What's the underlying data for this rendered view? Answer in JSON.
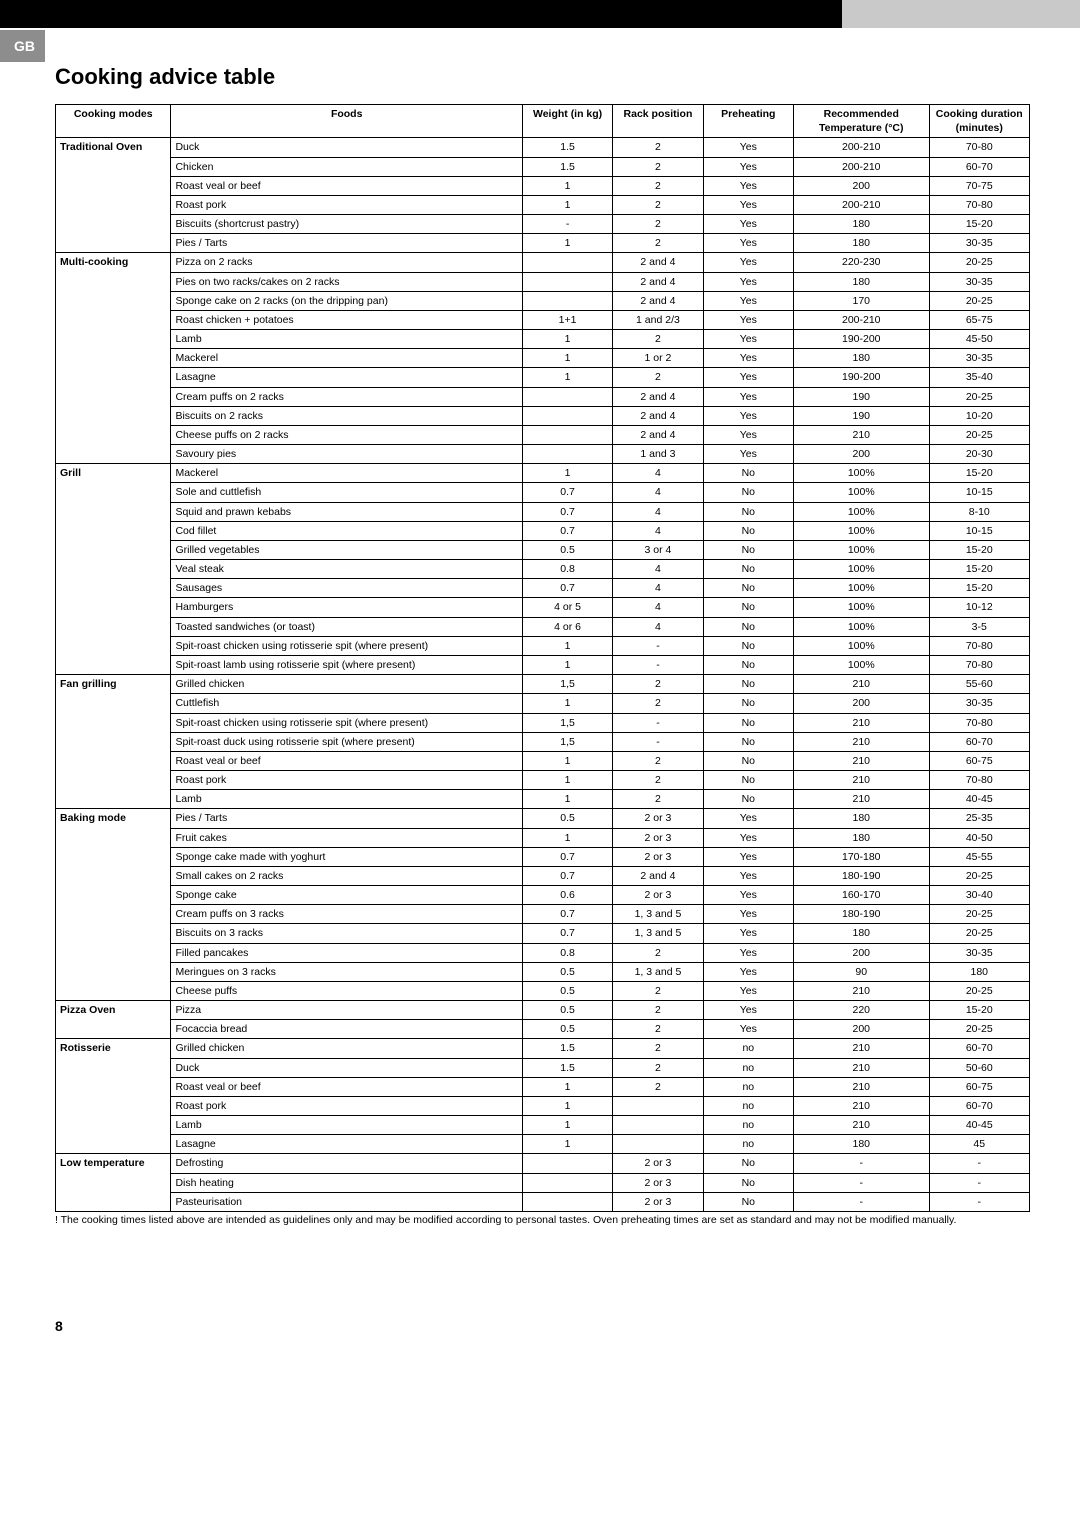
{
  "top_bar": {
    "black_color": "#000000",
    "gray_color": "#c9c9c9"
  },
  "gb_badge": "GB",
  "title": "Cooking advice table",
  "table": {
    "headers": {
      "mode": "Cooking modes",
      "foods": "Foods",
      "weight": "Weight (in kg)",
      "rack": "Rack position",
      "preheat": "Preheating",
      "temp": "Recommended Temperature (°C)",
      "duration": "Cooking duration (minutes)"
    },
    "sections": [
      {
        "mode": "Traditional Oven",
        "rows": [
          [
            "Duck",
            "1.5",
            "2",
            "Yes",
            "200-210",
            "70-80"
          ],
          [
            "Chicken",
            "1.5",
            "2",
            "Yes",
            "200-210",
            "60-70"
          ],
          [
            "Roast veal or beef",
            "1",
            "2",
            "Yes",
            "200",
            "70-75"
          ],
          [
            "Roast pork",
            "1",
            "2",
            "Yes",
            "200-210",
            "70-80"
          ],
          [
            "Biscuits (shortcrust pastry)",
            "-",
            "2",
            "Yes",
            "180",
            "15-20"
          ],
          [
            "Pies / Tarts",
            "1",
            "2",
            "Yes",
            "180",
            "30-35"
          ]
        ]
      },
      {
        "mode": "Multi-cooking",
        "rows": [
          [
            "Pizza on 2 racks",
            "",
            "2 and 4",
            "Yes",
            "220-230",
            "20-25"
          ],
          [
            "Pies on two racks/cakes on 2 racks",
            "",
            "2 and 4",
            "Yes",
            "180",
            "30-35"
          ],
          [
            "Sponge cake on 2 racks (on the dripping pan)",
            "",
            "2 and 4",
            "Yes",
            "170",
            "20-25"
          ],
          [
            "Roast chicken + potatoes",
            "1+1",
            "1 and 2/3",
            "Yes",
            "200-210",
            "65-75"
          ],
          [
            "Lamb",
            "1",
            "2",
            "Yes",
            "190-200",
            "45-50"
          ],
          [
            "Mackerel",
            "1",
            "1 or 2",
            "Yes",
            "180",
            "30-35"
          ],
          [
            "Lasagne",
            "1",
            "2",
            "Yes",
            "190-200",
            "35-40"
          ],
          [
            "Cream puffs on 2 racks",
            "",
            "2 and 4",
            "Yes",
            "190",
            "20-25"
          ],
          [
            "Biscuits on 2 racks",
            "",
            "2 and 4",
            "Yes",
            "190",
            "10-20"
          ],
          [
            "Cheese puffs on 2 racks",
            "",
            "2 and 4",
            "Yes",
            "210",
            "20-25"
          ],
          [
            "Savoury pies",
            "",
            "1 and 3",
            "Yes",
            "200",
            "20-30"
          ]
        ]
      },
      {
        "mode": "Grill",
        "rows": [
          [
            "Mackerel",
            "1",
            "4",
            "No",
            "100%",
            "15-20"
          ],
          [
            "Sole and cuttlefish",
            "0.7",
            "4",
            "No",
            "100%",
            "10-15"
          ],
          [
            "Squid and prawn kebabs",
            "0.7",
            "4",
            "No",
            "100%",
            "8-10"
          ],
          [
            "Cod fillet",
            "0.7",
            "4",
            "No",
            "100%",
            "10-15"
          ],
          [
            "Grilled vegetables",
            "0.5",
            "3 or 4",
            "No",
            "100%",
            "15-20"
          ],
          [
            "Veal steak",
            "0.8",
            "4",
            "No",
            "100%",
            "15-20"
          ],
          [
            "Sausages",
            "0.7",
            "4",
            "No",
            "100%",
            "15-20"
          ],
          [
            "Hamburgers",
            "4 or 5",
            "4",
            "No",
            "100%",
            "10-12"
          ],
          [
            "Toasted sandwiches (or toast)",
            "4 or 6",
            "4",
            "No",
            "100%",
            "3-5"
          ],
          [
            "Spit-roast chicken using rotisserie spit (where present)",
            "1",
            "-",
            "No",
            "100%",
            "70-80"
          ],
          [
            "Spit-roast lamb using rotisserie spit (where present)",
            "1",
            "-",
            "No",
            "100%",
            "70-80"
          ]
        ]
      },
      {
        "mode": "Fan grilling",
        "rows": [
          [
            "Grilled chicken",
            "1,5",
            "2",
            "No",
            "210",
            "55-60"
          ],
          [
            "Cuttlefish",
            "1",
            "2",
            "No",
            "200",
            "30-35"
          ],
          [
            "Spit-roast chicken using rotisserie spit (where present)",
            "1,5",
            "-",
            "No",
            "210",
            "70-80"
          ],
          [
            "Spit-roast duck using rotisserie spit (where present)",
            "1,5",
            "-",
            "No",
            "210",
            "60-70"
          ],
          [
            "Roast veal or beef",
            "1",
            "2",
            "No",
            "210",
            "60-75"
          ],
          [
            "Roast pork",
            "1",
            "2",
            "No",
            "210",
            "70-80"
          ],
          [
            "Lamb",
            "1",
            "2",
            "No",
            "210",
            "40-45"
          ]
        ]
      },
      {
        "mode": "Baking mode",
        "rows": [
          [
            "Pies / Tarts",
            "0.5",
            "2 or 3",
            "Yes",
            "180",
            "25-35"
          ],
          [
            "Fruit cakes",
            "1",
            "2 or 3",
            "Yes",
            "180",
            "40-50"
          ],
          [
            "Sponge cake made with yoghurt",
            "0.7",
            "2 or 3",
            "Yes",
            "170-180",
            "45-55"
          ],
          [
            "Small cakes on 2 racks",
            "0.7",
            "2 and 4",
            "Yes",
            "180-190",
            "20-25"
          ],
          [
            "Sponge cake",
            "0.6",
            "2 or 3",
            "Yes",
            "160-170",
            "30-40"
          ],
          [
            "Cream puffs on 3 racks",
            "0.7",
            "1, 3 and 5",
            "Yes",
            "180-190",
            "20-25"
          ],
          [
            "Biscuits on 3 racks",
            "0.7",
            "1, 3 and 5",
            "Yes",
            "180",
            "20-25"
          ],
          [
            "Filled pancakes",
            "0.8",
            "2",
            "Yes",
            "200",
            "30-35"
          ],
          [
            "Meringues on 3 racks",
            "0.5",
            "1, 3 and 5",
            "Yes",
            "90",
            "180"
          ],
          [
            "Cheese puffs",
            "0.5",
            "2",
            "Yes",
            "210",
            "20-25"
          ]
        ]
      },
      {
        "mode": "Pizza Oven",
        "rows": [
          [
            "Pizza",
            "0.5",
            "2",
            "Yes",
            "220",
            "15-20"
          ],
          [
            "Focaccia bread",
            "0.5",
            "2",
            "Yes",
            "200",
            "20-25"
          ]
        ]
      },
      {
        "mode": "Rotisserie",
        "rows": [
          [
            "Grilled chicken",
            "1.5",
            "2",
            "no",
            "210",
            "60-70"
          ],
          [
            "Duck",
            "1.5",
            "2",
            "no",
            "210",
            "50-60"
          ],
          [
            "Roast veal or beef",
            "1",
            "2",
            "no",
            "210",
            "60-75"
          ],
          [
            "Roast pork",
            "1",
            "",
            "no",
            "210",
            "60-70"
          ],
          [
            "Lamb",
            "1",
            "",
            "no",
            "210",
            "40-45"
          ],
          [
            "Lasagne",
            "1",
            "",
            "no",
            "180",
            "45"
          ]
        ]
      },
      {
        "mode": "Low temperature",
        "rows": [
          [
            "Defrosting",
            "",
            "2 or 3",
            "No",
            "-",
            "-"
          ],
          [
            "Dish heating",
            "",
            "2 or 3",
            "No",
            "-",
            "-"
          ],
          [
            "Pasteurisation",
            "",
            "2 or 3",
            "No",
            "-",
            "-"
          ]
        ]
      }
    ]
  },
  "footnote": "! The cooking times listed above are intended as guidelines only and may be modified according to personal tastes. Oven preheating times are set as standard and may not be modified manually.",
  "page_number": "8"
}
